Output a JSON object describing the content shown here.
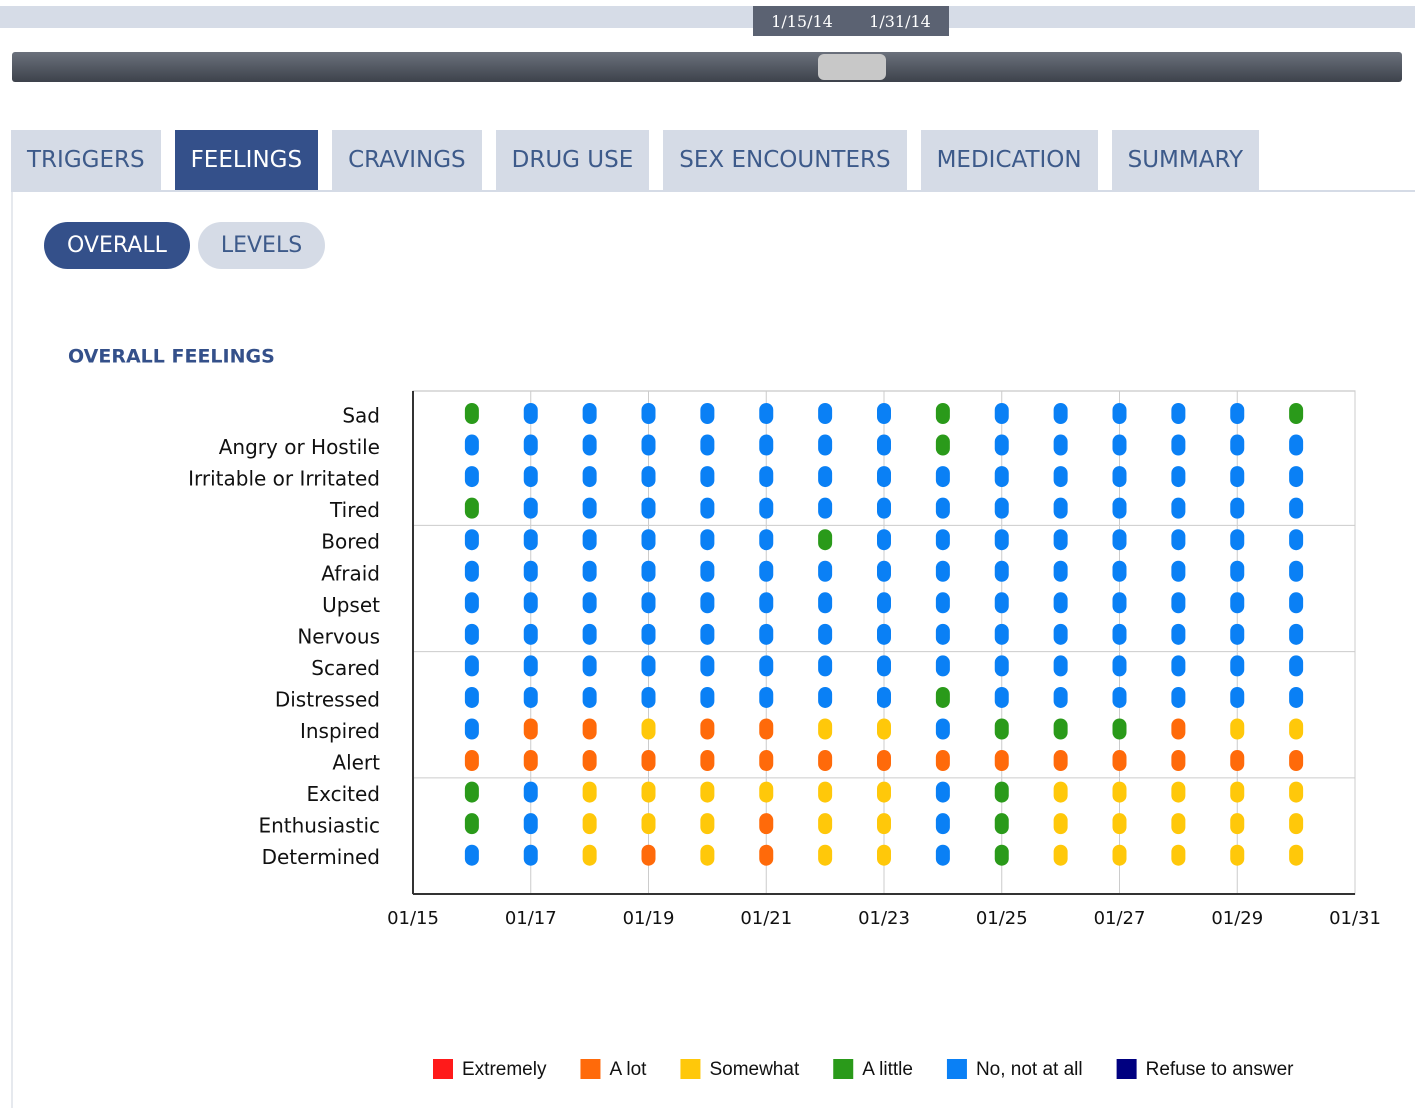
{
  "range_slider": {
    "start": "1/15/14",
    "end": "1/31/14"
  },
  "tabs": [
    {
      "label": "TRIGGERS"
    },
    {
      "label": "FEELINGS",
      "active": true
    },
    {
      "label": "CRAVINGS"
    },
    {
      "label": "DRUG USE"
    },
    {
      "label": "SEX ENCOUNTERS"
    },
    {
      "label": "MEDICATION"
    },
    {
      "label": "SUMMARY"
    }
  ],
  "subtabs": [
    {
      "label": "OVERALL",
      "active": true
    },
    {
      "label": "LEVELS"
    }
  ],
  "chart_data": {
    "type": "dot-matrix",
    "title": "OVERALL FEELINGS",
    "categories": [
      "Sad",
      "Angry or Hostile",
      "Irritable or Irritated",
      "Tired",
      "Bored",
      "Afraid",
      "Upset",
      "Nervous",
      "Scared",
      "Distressed",
      "Inspired",
      "Alert",
      "Excited",
      "Enthusiastic",
      "Determined"
    ],
    "xlim": [
      15,
      31
    ],
    "xticks": [
      {
        "value": 15,
        "label": "01/15"
      },
      {
        "value": 17,
        "label": "01/17"
      },
      {
        "value": 19,
        "label": "01/19"
      },
      {
        "value": 21,
        "label": "01/21"
      },
      {
        "value": 23,
        "label": "01/23"
      },
      {
        "value": 25,
        "label": "01/25"
      },
      {
        "value": 27,
        "label": "01/27"
      },
      {
        "value": 29,
        "label": "01/29"
      },
      {
        "value": 31,
        "label": "01/31"
      }
    ],
    "grid": true,
    "series": [
      {
        "name": "Extremely",
        "color": "#ff1a1a",
        "values": [
          [],
          [],
          [],
          [],
          [],
          [],
          [],
          [],
          [],
          [],
          [],
          [],
          [],
          [],
          []
        ]
      },
      {
        "name": "A lot",
        "color": "#ff6a0a",
        "values": [
          [],
          [],
          [],
          [],
          [],
          [],
          [],
          [],
          [],
          [],
          [
            17,
            18,
            20,
            21,
            28
          ],
          [
            16,
            17,
            18,
            19,
            20,
            21,
            22,
            23,
            24,
            25,
            26,
            27,
            28,
            29,
            30
          ],
          [],
          [
            21
          ],
          [
            19,
            21
          ]
        ]
      },
      {
        "name": "Somewhat",
        "color": "#ffc80a",
        "values": [
          [],
          [],
          [],
          [],
          [],
          [],
          [],
          [],
          [],
          [],
          [
            19,
            22,
            23,
            29,
            30
          ],
          [],
          [
            18,
            19,
            20,
            21,
            22,
            23,
            26,
            27,
            28,
            29,
            30
          ],
          [
            18,
            19,
            20,
            22,
            23,
            26,
            27,
            28,
            29,
            30
          ],
          [
            18,
            20,
            22,
            23,
            26,
            27,
            28,
            29,
            30
          ]
        ]
      },
      {
        "name": "A little",
        "color": "#2a9a1a",
        "values": [
          [
            16,
            24,
            30
          ],
          [
            24
          ],
          [],
          [
            16
          ],
          [
            22
          ],
          [],
          [],
          [],
          [],
          [
            24
          ],
          [
            25,
            26,
            27
          ],
          [],
          [
            16,
            25
          ],
          [
            16,
            25
          ],
          [
            25
          ]
        ]
      },
      {
        "name": "No, not at all",
        "color": "#0a80f5",
        "values": [
          [
            17,
            18,
            19,
            20,
            21,
            22,
            23,
            25,
            26,
            27,
            28,
            29
          ],
          [
            16,
            17,
            18,
            19,
            20,
            21,
            22,
            23,
            25,
            26,
            27,
            28,
            29,
            30
          ],
          [
            16,
            17,
            18,
            19,
            20,
            21,
            22,
            23,
            24,
            25,
            26,
            27,
            28,
            29,
            30
          ],
          [
            17,
            18,
            19,
            20,
            21,
            22,
            23,
            24,
            25,
            26,
            27,
            28,
            29,
            30
          ],
          [
            16,
            17,
            18,
            19,
            20,
            21,
            23,
            24,
            25,
            26,
            27,
            28,
            29,
            30
          ],
          [
            16,
            17,
            18,
            19,
            20,
            21,
            22,
            23,
            24,
            25,
            26,
            27,
            28,
            29,
            30
          ],
          [
            16,
            17,
            18,
            19,
            20,
            21,
            22,
            23,
            24,
            25,
            26,
            27,
            28,
            29,
            30
          ],
          [
            16,
            17,
            18,
            19,
            20,
            21,
            22,
            23,
            24,
            25,
            26,
            27,
            28,
            29,
            30
          ],
          [
            16,
            17,
            18,
            19,
            20,
            21,
            22,
            23,
            24,
            25,
            26,
            27,
            28,
            29,
            30
          ],
          [
            16,
            17,
            18,
            19,
            20,
            21,
            22,
            23,
            25,
            26,
            27,
            28,
            29,
            30
          ],
          [
            16,
            24
          ],
          [],
          [
            17,
            24
          ],
          [
            17,
            24
          ],
          [
            16,
            17,
            24
          ]
        ]
      },
      {
        "name": "Refuse to answer",
        "color": "#000080",
        "values": [
          [],
          [],
          [],
          [],
          [],
          [],
          [],
          [],
          [],
          [],
          [],
          [],
          [],
          [],
          []
        ]
      }
    ]
  }
}
